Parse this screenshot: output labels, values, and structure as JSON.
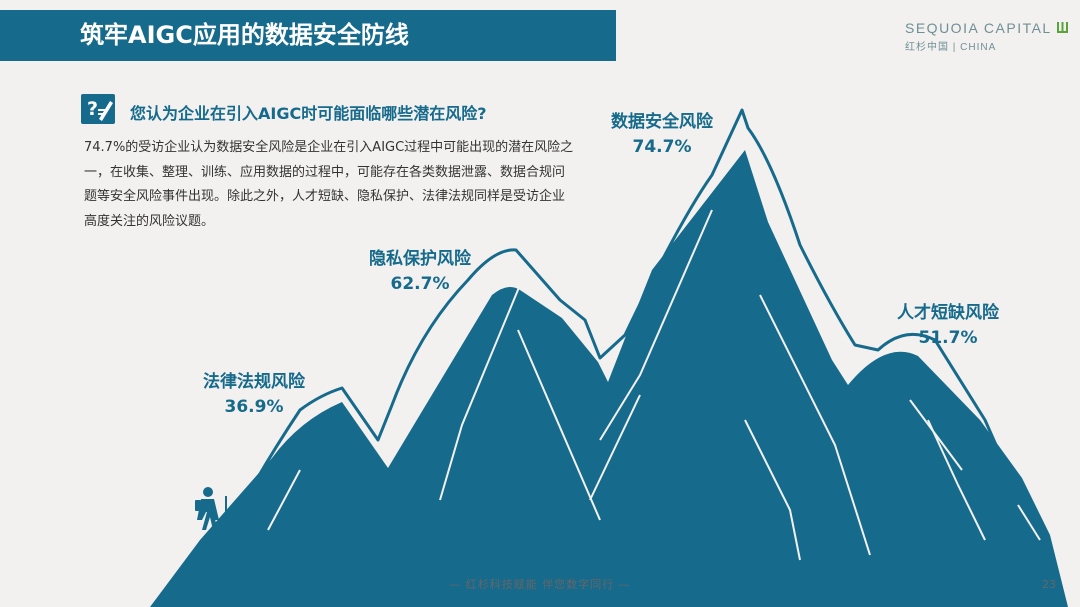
{
  "header": {
    "title": "筑牢AIGC应用的数据安全防线"
  },
  "brand": {
    "name": "SEQUOIA CAPITAL",
    "sub_cn": "红杉中国",
    "sub_en": "CHINA"
  },
  "question": "您认为企业在引入AIGC时可能面临哪些潜在风险?",
  "body_text": "74.7%的受访企业认为数据安全风险是企业在引入AIGC过程中可能出现的潜在风险之一，在收集、整理、训练、应用数据的过程中，可能存在各类数据泄露、数据合规问题等安全风险事件出现。除此之外，人才短缺、隐私保护、法律法规同样是受访企业高度关注的风险议题。",
  "colors": {
    "accent": "#166a8c",
    "background": "#f2f1ef"
  },
  "icons": {
    "question": "question-notepad-icon",
    "hiker": "hiker-icon"
  },
  "chart_data": {
    "type": "bar",
    "categories": [
      "法律法规风险",
      "隐私保护风险",
      "数据安全风险",
      "人才短缺风险"
    ],
    "values": [
      36.9,
      62.7,
      74.7,
      51.7
    ],
    "value_labels": [
      "36.9%",
      "62.7%",
      "74.7%",
      "51.7%"
    ],
    "unit": "%"
  },
  "footer": {
    "text": "— 红杉科技赋能    伴您数字同行 —",
    "page": "23"
  }
}
